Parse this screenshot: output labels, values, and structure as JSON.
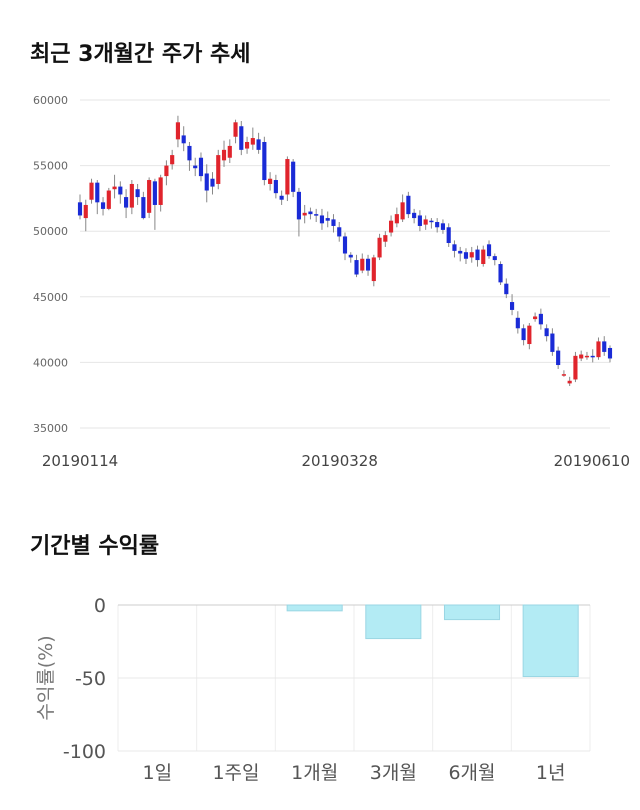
{
  "titles": {
    "price_trend": "최근 3개월간 주가 추세",
    "period_returns": "기간별 수익률"
  },
  "colors": {
    "up": "#e0242c",
    "down": "#1a2bd6",
    "return_fill": "#b3ebf4",
    "return_stroke": "#9ad6e3",
    "grid": "#e6e6e6"
  },
  "chart_data": [
    {
      "type": "candlestick",
      "title": "최근 3개월간 주가 추세",
      "ylim": [
        35000,
        60000
      ],
      "yticks": [
        "60000",
        "55000",
        "50000",
        "45000",
        "40000",
        "35000"
      ],
      "xtick_labels": [
        "20190114",
        "20190328",
        "20190610"
      ],
      "candles": [
        [
          52200,
          51200,
          52800,
          50900
        ],
        [
          51000,
          52000,
          52400,
          50000
        ],
        [
          52400,
          53700,
          54000,
          52100
        ],
        [
          53700,
          52200,
          53900,
          51300
        ],
        [
          52200,
          51700,
          52600,
          51200
        ],
        [
          51700,
          53100,
          53300,
          51600
        ],
        [
          53200,
          53400,
          54300,
          52500
        ],
        [
          53400,
          52800,
          53800,
          52100
        ],
        [
          52600,
          51800,
          53200,
          51000
        ],
        [
          51800,
          53600,
          53900,
          51300
        ],
        [
          53200,
          52600,
          53600,
          52000
        ],
        [
          52600,
          51000,
          53000,
          50900
        ],
        [
          51400,
          53900,
          54100,
          51000
        ],
        [
          53800,
          52000,
          54000,
          50100
        ],
        [
          52000,
          54100,
          54300,
          51500
        ],
        [
          54200,
          55000,
          55400,
          53500
        ],
        [
          55100,
          55800,
          56200,
          54700
        ],
        [
          57000,
          58300,
          58800,
          56400
        ],
        [
          57300,
          56700,
          58000,
          56100
        ],
        [
          56500,
          55400,
          56800,
          54600
        ],
        [
          55000,
          54800,
          55600,
          54200
        ],
        [
          55600,
          54200,
          56000,
          53800
        ],
        [
          54400,
          53100,
          55100,
          52200
        ],
        [
          54000,
          53400,
          54500,
          52800
        ],
        [
          53600,
          55800,
          56200,
          53200
        ],
        [
          55400,
          56200,
          56900,
          54900
        ],
        [
          55600,
          56500,
          57000,
          55200
        ],
        [
          57200,
          58300,
          58500,
          56700
        ],
        [
          58000,
          56200,
          58400,
          55800
        ],
        [
          56300,
          56800,
          57200,
          55900
        ],
        [
          56600,
          57100,
          57900,
          56200
        ],
        [
          57000,
          56200,
          57500,
          55900
        ],
        [
          56800,
          53900,
          57200,
          53500
        ],
        [
          53600,
          54000,
          54500,
          53100
        ],
        [
          53900,
          52900,
          54300,
          52500
        ],
        [
          52700,
          52400,
          53100,
          52000
        ],
        [
          52800,
          55500,
          55700,
          52300
        ],
        [
          55300,
          53000,
          55500,
          52600
        ],
        [
          53000,
          50900,
          53300,
          49600
        ],
        [
          51200,
          51400,
          52000,
          50600
        ],
        [
          51500,
          51300,
          51800,
          50900
        ],
        [
          51300,
          51200,
          51700,
          50700
        ],
        [
          51200,
          50600,
          51700,
          50100
        ],
        [
          51000,
          50800,
          51500,
          50300
        ],
        [
          50900,
          50400,
          51300,
          49900
        ],
        [
          50300,
          49600,
          50700,
          49200
        ],
        [
          49600,
          48300,
          49900,
          47800
        ],
        [
          48200,
          48000,
          48400,
          47600
        ],
        [
          47800,
          46700,
          48200,
          46500
        ],
        [
          47000,
          47900,
          48300,
          46800
        ],
        [
          47900,
          47000,
          48200,
          46600
        ],
        [
          46200,
          48000,
          48200,
          45800
        ],
        [
          48000,
          49500,
          49800,
          47800
        ],
        [
          49200,
          49700,
          50000,
          48800
        ],
        [
          49900,
          50800,
          51200,
          49600
        ],
        [
          50600,
          51300,
          51800,
          50300
        ],
        [
          50900,
          52200,
          52800,
          50700
        ],
        [
          52700,
          51300,
          53000,
          51000
        ],
        [
          51400,
          51000,
          51700,
          50600
        ],
        [
          51200,
          50400,
          51600,
          50000
        ],
        [
          50500,
          50900,
          51200,
          50100
        ],
        [
          50800,
          50700,
          51000,
          50200
        ],
        [
          50700,
          50300,
          51000,
          49900
        ],
        [
          50600,
          50100,
          50900,
          49800
        ],
        [
          50300,
          49100,
          50600,
          48800
        ],
        [
          49000,
          48500,
          49300,
          48000
        ],
        [
          48500,
          48300,
          48800,
          47700
        ],
        [
          48400,
          47900,
          48700,
          47500
        ],
        [
          48000,
          48400,
          48800,
          47600
        ],
        [
          48600,
          47800,
          48900,
          47300
        ],
        [
          47500,
          48600,
          48900,
          47300
        ],
        [
          49000,
          48100,
          49300,
          47900
        ],
        [
          48100,
          47800,
          48300,
          47400
        ],
        [
          47500,
          46100,
          47700,
          45900
        ],
        [
          46000,
          45200,
          46400,
          44900
        ],
        [
          44600,
          44000,
          45200,
          43600
        ],
        [
          43400,
          42600,
          43900,
          42200
        ],
        [
          42600,
          41700,
          42900,
          41300
        ],
        [
          41400,
          42800,
          43000,
          41000
        ],
        [
          43300,
          43500,
          43800,
          43100
        ],
        [
          43700,
          42900,
          44100,
          42500
        ],
        [
          42600,
          42000,
          42900,
          41600
        ],
        [
          42200,
          40800,
          42600,
          40500
        ],
        [
          40900,
          39800,
          41200,
          39500
        ],
        [
          39100,
          39100,
          39400,
          38900
        ],
        [
          38400,
          38600,
          38900,
          38200
        ],
        [
          38700,
          40500,
          40800,
          38500
        ],
        [
          40300,
          40600,
          40900,
          40100
        ],
        [
          40400,
          40500,
          40800,
          40200
        ],
        [
          40500,
          40400,
          41000,
          40000
        ],
        [
          40400,
          41600,
          41900,
          40200
        ],
        [
          41600,
          40800,
          42000,
          40500
        ],
        [
          41100,
          40300,
          41300,
          40000
        ]
      ]
    },
    {
      "type": "bar",
      "title": "기간별 수익률",
      "ylabel": "수익률(%)",
      "ylim": [
        -100,
        0
      ],
      "yticks": [
        "0",
        "-50",
        "-100"
      ],
      "categories": [
        "1일",
        "1주일",
        "1개월",
        "3개월",
        "6개월",
        "1년"
      ],
      "values": [
        0,
        0,
        -4,
        -23,
        -10,
        -49
      ]
    }
  ]
}
